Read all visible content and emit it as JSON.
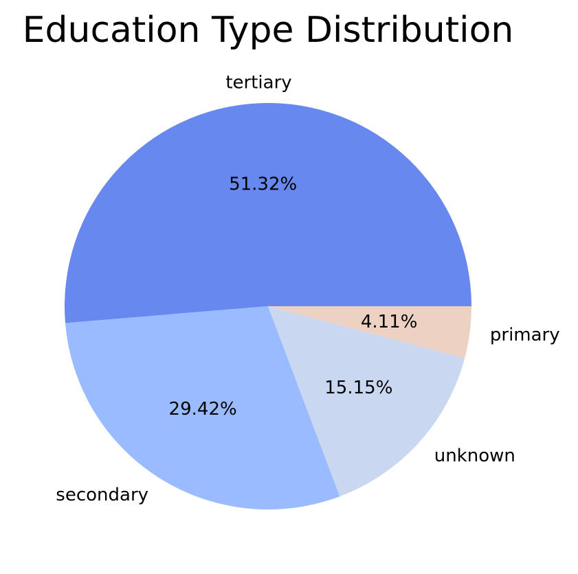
{
  "chart_data": {
    "type": "pie",
    "title": "Education Type Distribution",
    "categories": [
      "tertiary",
      "secondary",
      "unknown",
      "primary"
    ],
    "values": [
      51.32,
      29.42,
      15.15,
      4.11
    ],
    "value_labels": [
      "51.32%",
      "29.42%",
      "15.15%",
      "4.11%"
    ],
    "colors": [
      "#6788ee",
      "#9abbff",
      "#c9d7f0",
      "#edd1c2"
    ],
    "start_angle": "0° (3 o'clock)",
    "direction": "counter-clockwise"
  }
}
